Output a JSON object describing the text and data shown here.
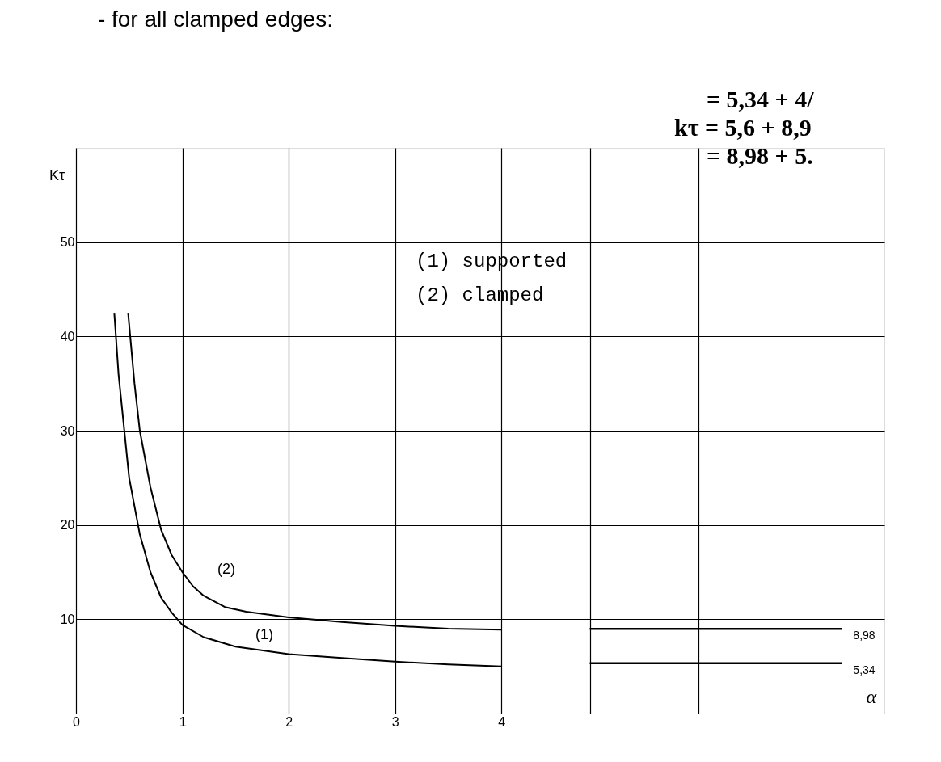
{
  "chart_data": {
    "type": "line",
    "title": "- for all clamped edges:",
    "xlabel": "α",
    "ylabel": "Kτ",
    "xlim": [
      0,
      7.6
    ],
    "ylim": [
      0,
      60
    ],
    "xticks": [
      0,
      1,
      2,
      3,
      4,
      {
        "value": 4.83,
        "label": null
      },
      {
        "value": 5.85,
        "label": null
      }
    ],
    "yticks": [
      10,
      20,
      30,
      40,
      50
    ],
    "grid": true,
    "marker": "none",
    "line_style": "solid",
    "series": [
      {
        "color": "#000000",
        "x": [
          0.36,
          0.4,
          0.5,
          0.6,
          0.7,
          0.8,
          0.9,
          1.0,
          1.2,
          1.5,
          2.0,
          2.5,
          3.0,
          3.5,
          4.0
        ],
        "values": [
          42.5,
          36,
          25,
          19,
          15,
          12.3,
          10.7,
          9.4,
          8.1,
          7.1,
          6.3,
          5.9,
          5.5,
          5.2,
          5.0
        ]
      },
      {
        "color": "#000000",
        "x": [
          0.49,
          0.55,
          0.6,
          0.7,
          0.8,
          0.9,
          1.0,
          1.1,
          1.2,
          1.4,
          1.6,
          2.0,
          2.5,
          3.0,
          3.5,
          4.0
        ],
        "values": [
          42.5,
          35,
          30,
          24,
          19.5,
          16.8,
          15,
          13.5,
          12.5,
          11.3,
          10.8,
          10.2,
          9.7,
          9.3,
          9.0,
          8.9
        ]
      }
    ],
    "ref_lines": [
      {
        "axis": "y",
        "value": 8.98,
        "label": "8,98",
        "color": "#000000"
      },
      {
        "axis": "y",
        "value": 5.34,
        "label": "5,34",
        "color": "#000000"
      }
    ],
    "annotations": [
      "(2)",
      "(1)",
      "(1)  supported",
      "(2)  clamped",
      "= 5,34 + 4/",
      "kτ = 5,6 + 8,9",
      "= 8,98 + 5."
    ]
  }
}
